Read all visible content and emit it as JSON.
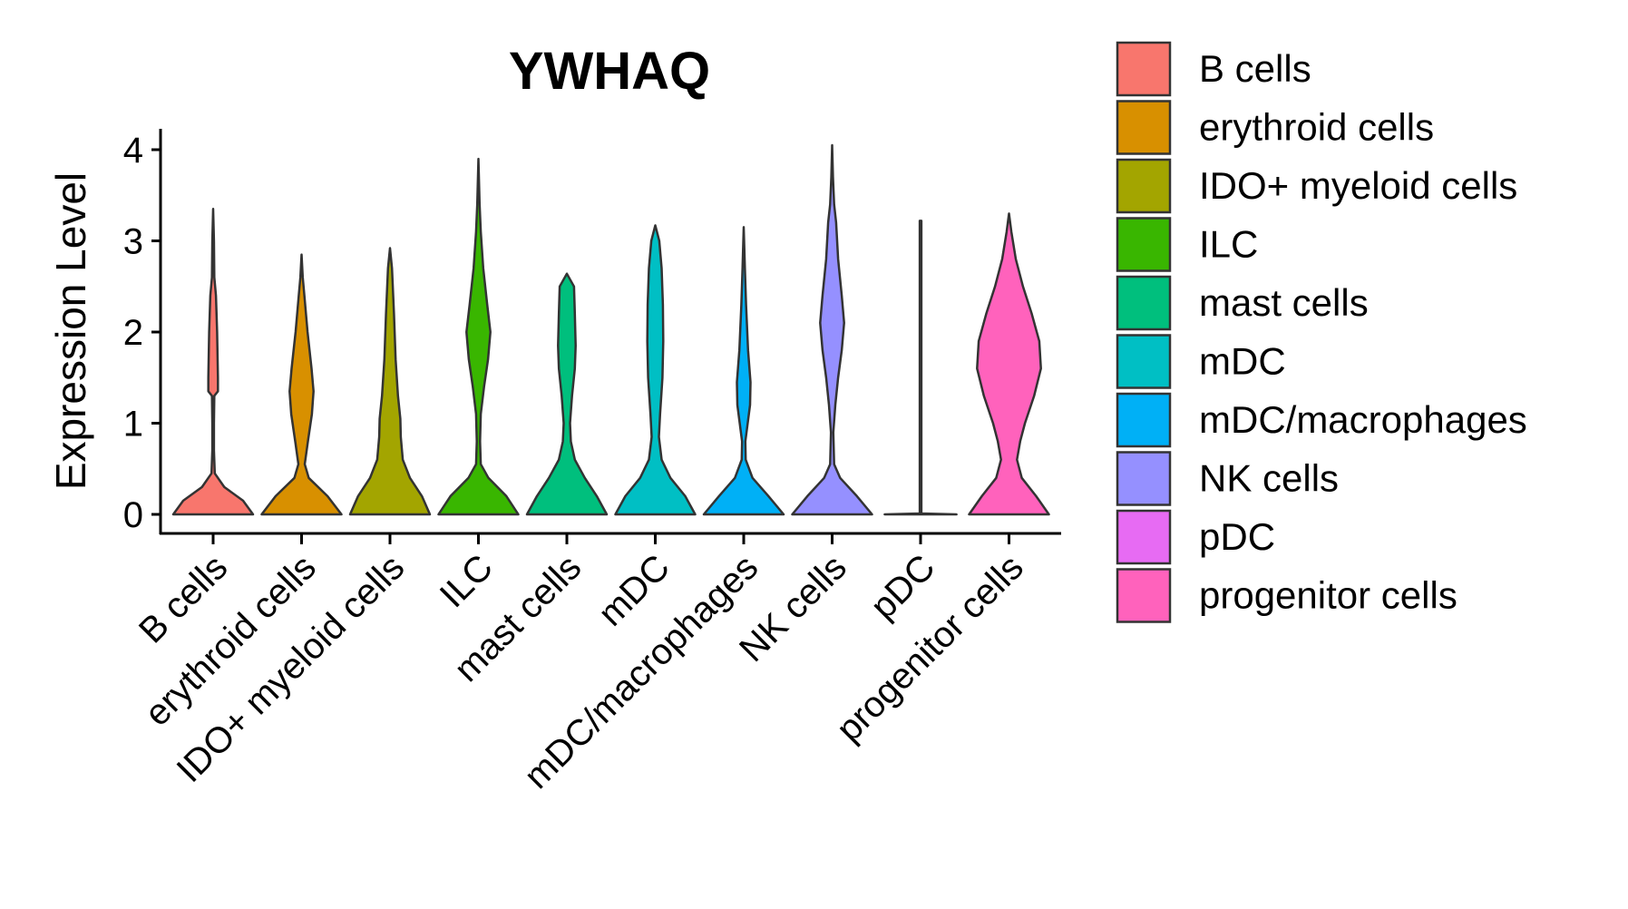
{
  "chart_data": {
    "type": "violin",
    "title": "YWHAQ",
    "xlabel": "",
    "ylabel": "Expression Level",
    "ylim": [
      0,
      4.2
    ],
    "yticks": [
      0,
      1,
      2,
      3,
      4
    ],
    "grid": false,
    "legend_position": "right",
    "categories": [
      "B cells",
      "erythroid cells",
      "IDO+ myeloid cells",
      "ILC",
      "mast cells",
      "mDC",
      "mDC/macrophages",
      "NK cells",
      "pDC",
      "progenitor cells"
    ],
    "series": [
      {
        "name": "B cells",
        "color": "#F8766D",
        "max": 3.35,
        "density": [
          [
            0,
            1.0
          ],
          [
            0.15,
            0.75
          ],
          [
            0.3,
            0.28
          ],
          [
            0.45,
            0.04
          ],
          [
            0.7,
            0.02
          ],
          [
            1.0,
            0.02
          ],
          [
            1.3,
            0.03
          ],
          [
            1.35,
            0.12
          ],
          [
            1.5,
            0.12
          ],
          [
            2.0,
            0.1
          ],
          [
            2.4,
            0.07
          ],
          [
            2.6,
            0.03
          ],
          [
            3.0,
            0.02
          ],
          [
            3.35,
            0
          ]
        ]
      },
      {
        "name": "erythroid cells",
        "color": "#D89000",
        "max": 2.85,
        "density": [
          [
            0,
            1.0
          ],
          [
            0.2,
            0.65
          ],
          [
            0.4,
            0.18
          ],
          [
            0.55,
            0.08
          ],
          [
            0.8,
            0.16
          ],
          [
            1.1,
            0.26
          ],
          [
            1.35,
            0.3
          ],
          [
            1.6,
            0.25
          ],
          [
            2.0,
            0.15
          ],
          [
            2.4,
            0.07
          ],
          [
            2.6,
            0.03
          ],
          [
            2.85,
            0
          ]
        ]
      },
      {
        "name": "IDO+ myeloid cells",
        "color": "#A3A500",
        "max": 2.92,
        "density": [
          [
            0,
            1.0
          ],
          [
            0.2,
            0.8
          ],
          [
            0.4,
            0.5
          ],
          [
            0.6,
            0.32
          ],
          [
            0.85,
            0.27
          ],
          [
            1.05,
            0.26
          ],
          [
            1.3,
            0.2
          ],
          [
            1.7,
            0.14
          ],
          [
            2.2,
            0.1
          ],
          [
            2.7,
            0.05
          ],
          [
            2.92,
            0
          ]
        ]
      },
      {
        "name": "ILC",
        "color": "#39B600",
        "max": 3.9,
        "density": [
          [
            0,
            1.0
          ],
          [
            0.2,
            0.7
          ],
          [
            0.4,
            0.25
          ],
          [
            0.55,
            0.06
          ],
          [
            0.8,
            0.04
          ],
          [
            1.1,
            0.06
          ],
          [
            1.4,
            0.14
          ],
          [
            1.7,
            0.24
          ],
          [
            2.0,
            0.3
          ],
          [
            2.3,
            0.22
          ],
          [
            2.7,
            0.12
          ],
          [
            3.1,
            0.06
          ],
          [
            3.4,
            0.03
          ],
          [
            3.9,
            0
          ]
        ]
      },
      {
        "name": "mast cells",
        "color": "#00BF7D",
        "max": 2.64,
        "density": [
          [
            0,
            1.0
          ],
          [
            0.2,
            0.75
          ],
          [
            0.4,
            0.45
          ],
          [
            0.6,
            0.2
          ],
          [
            0.8,
            0.1
          ],
          [
            1.0,
            0.08
          ],
          [
            1.3,
            0.13
          ],
          [
            1.6,
            0.2
          ],
          [
            1.85,
            0.22
          ],
          [
            2.2,
            0.2
          ],
          [
            2.5,
            0.18
          ],
          [
            2.64,
            0
          ]
        ]
      },
      {
        "name": "mDC",
        "color": "#00BFC4",
        "max": 3.17,
        "density": [
          [
            0,
            1.0
          ],
          [
            0.2,
            0.75
          ],
          [
            0.4,
            0.38
          ],
          [
            0.6,
            0.16
          ],
          [
            0.85,
            0.09
          ],
          [
            1.1,
            0.12
          ],
          [
            1.5,
            0.18
          ],
          [
            1.9,
            0.2
          ],
          [
            2.3,
            0.19
          ],
          [
            2.7,
            0.16
          ],
          [
            3.0,
            0.1
          ],
          [
            3.17,
            0
          ]
        ]
      },
      {
        "name": "mDC/macrophages",
        "color": "#00B0F6",
        "max": 3.15,
        "density": [
          [
            0,
            1.0
          ],
          [
            0.2,
            0.62
          ],
          [
            0.4,
            0.22
          ],
          [
            0.6,
            0.05
          ],
          [
            0.8,
            0.04
          ],
          [
            1.0,
            0.1
          ],
          [
            1.2,
            0.16
          ],
          [
            1.45,
            0.17
          ],
          [
            1.8,
            0.11
          ],
          [
            2.3,
            0.06
          ],
          [
            2.7,
            0.03
          ],
          [
            3.15,
            0
          ]
        ]
      },
      {
        "name": "NK cells",
        "color": "#9590FF",
        "max": 4.05,
        "density": [
          [
            0,
            1.0
          ],
          [
            0.2,
            0.62
          ],
          [
            0.4,
            0.2
          ],
          [
            0.55,
            0.05
          ],
          [
            0.9,
            0.03
          ],
          [
            1.2,
            0.08
          ],
          [
            1.5,
            0.15
          ],
          [
            1.8,
            0.24
          ],
          [
            2.1,
            0.3
          ],
          [
            2.4,
            0.24
          ],
          [
            2.8,
            0.15
          ],
          [
            3.2,
            0.1
          ],
          [
            3.4,
            0.05
          ],
          [
            3.7,
            0.02
          ],
          [
            4.05,
            0
          ]
        ]
      },
      {
        "name": "pDC",
        "color": "#E76BF3",
        "max": 3.22,
        "density": [
          [
            0,
            0.9
          ],
          [
            0.01,
            0.02
          ],
          [
            3.22,
            0.02
          ]
        ]
      },
      {
        "name": "progenitor cells",
        "color": "#FF62BC",
        "max": 3.3,
        "density": [
          [
            0,
            1.0
          ],
          [
            0.2,
            0.68
          ],
          [
            0.4,
            0.32
          ],
          [
            0.6,
            0.2
          ],
          [
            0.8,
            0.28
          ],
          [
            1.0,
            0.4
          ],
          [
            1.3,
            0.63
          ],
          [
            1.6,
            0.8
          ],
          [
            1.9,
            0.76
          ],
          [
            2.2,
            0.57
          ],
          [
            2.5,
            0.35
          ],
          [
            2.8,
            0.17
          ],
          [
            3.1,
            0.06
          ],
          [
            3.3,
            0
          ]
        ]
      }
    ]
  }
}
